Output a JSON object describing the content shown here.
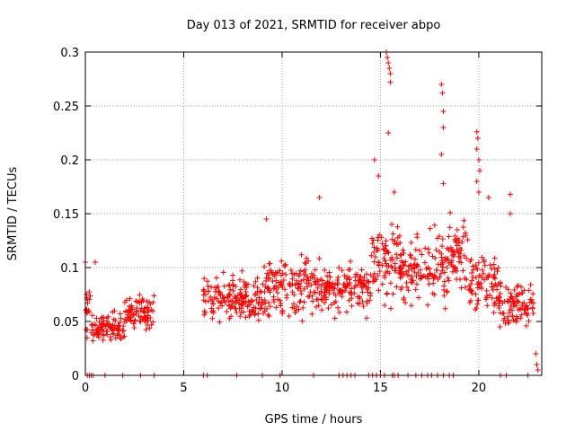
{
  "chart_data": {
    "type": "scatter",
    "title": "Day 013 of 2021, SRMTID for receiver abpo",
    "xlabel": "GPS time / hours",
    "ylabel": "SRMTID / TECUs",
    "xlim": [
      0,
      23.2
    ],
    "ylim": [
      0,
      0.3
    ],
    "xticks": [
      0,
      5,
      10,
      15,
      20
    ],
    "yticks": [
      0,
      0.05,
      0.1,
      0.15,
      0.2,
      0.25,
      0.3
    ],
    "ytick_labels": [
      "0",
      "0.05",
      "0.1",
      "0.15",
      "0.2",
      "0.25",
      "0.3"
    ],
    "grid": true,
    "marker": "plus",
    "series_color": "#ff0000",
    "series": [
      {
        "name": "SRMTID",
        "segments": [
          {
            "t_start": 0.0,
            "t_end": 0.3,
            "mean": 0.06,
            "spread": 0.025
          },
          {
            "t_start": 0.3,
            "t_end": 2.0,
            "mean": 0.045,
            "spread": 0.013
          },
          {
            "t_start": 2.0,
            "t_end": 3.5,
            "mean": 0.058,
            "spread": 0.014
          },
          {
            "t_start": 6.0,
            "t_end": 9.0,
            "mean": 0.072,
            "spread": 0.018
          },
          {
            "t_start": 9.0,
            "t_end": 12.0,
            "mean": 0.082,
            "spread": 0.024
          },
          {
            "t_start": 12.0,
            "t_end": 14.5,
            "mean": 0.08,
            "spread": 0.02
          },
          {
            "t_start": 14.5,
            "t_end": 16.0,
            "mean": 0.105,
            "spread": 0.03
          },
          {
            "t_start": 16.0,
            "t_end": 18.5,
            "mean": 0.1,
            "spread": 0.028
          },
          {
            "t_start": 18.5,
            "t_end": 19.5,
            "mean": 0.115,
            "spread": 0.025
          },
          {
            "t_start": 19.5,
            "t_end": 21.0,
            "mean": 0.085,
            "spread": 0.025
          },
          {
            "t_start": 21.0,
            "t_end": 22.8,
            "mean": 0.065,
            "spread": 0.018
          }
        ],
        "outliers": [
          {
            "x": 0.0,
            "y": 0.105
          },
          {
            "x": 0.5,
            "y": 0.105
          },
          {
            "x": 9.2,
            "y": 0.145
          },
          {
            "x": 11.9,
            "y": 0.165
          },
          {
            "x": 14.7,
            "y": 0.2
          },
          {
            "x": 14.9,
            "y": 0.185
          },
          {
            "x": 15.3,
            "y": 0.3
          },
          {
            "x": 15.35,
            "y": 0.295
          },
          {
            "x": 15.4,
            "y": 0.29
          },
          {
            "x": 15.45,
            "y": 0.285
          },
          {
            "x": 15.5,
            "y": 0.28
          },
          {
            "x": 15.5,
            "y": 0.272
          },
          {
            "x": 15.4,
            "y": 0.225
          },
          {
            "x": 15.7,
            "y": 0.17
          },
          {
            "x": 18.1,
            "y": 0.27
          },
          {
            "x": 18.15,
            "y": 0.262
          },
          {
            "x": 18.2,
            "y": 0.245
          },
          {
            "x": 18.2,
            "y": 0.23
          },
          {
            "x": 18.1,
            "y": 0.205
          },
          {
            "x": 18.2,
            "y": 0.178
          },
          {
            "x": 19.9,
            "y": 0.226
          },
          {
            "x": 19.95,
            "y": 0.22
          },
          {
            "x": 19.9,
            "y": 0.21
          },
          {
            "x": 20.0,
            "y": 0.2
          },
          {
            "x": 20.05,
            "y": 0.19
          },
          {
            "x": 19.9,
            "y": 0.18
          },
          {
            "x": 20.0,
            "y": 0.17
          },
          {
            "x": 20.5,
            "y": 0.165
          },
          {
            "x": 21.6,
            "y": 0.168
          },
          {
            "x": 21.6,
            "y": 0.15
          },
          {
            "x": 22.9,
            "y": 0.02
          },
          {
            "x": 22.95,
            "y": 0.01
          },
          {
            "x": 23.0,
            "y": 0.005
          }
        ],
        "zero_points": [
          0.1,
          0.2,
          0.3,
          0.4,
          1.0,
          1.9,
          2.8,
          3.5,
          6.0,
          6.2,
          7.7,
          9.0,
          9.9,
          11.6,
          12.9,
          13.1,
          13.3,
          13.5,
          13.7,
          14.4,
          14.6,
          14.8,
          15.0,
          15.2,
          15.6,
          15.7,
          15.9,
          16.4,
          16.8,
          17.1,
          17.4,
          17.6,
          17.9,
          18.2,
          18.5,
          18.7,
          21.1,
          21.4,
          22.5
        ]
      }
    ]
  }
}
